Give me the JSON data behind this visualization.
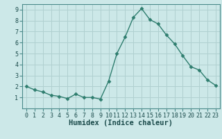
{
  "x": [
    0,
    1,
    2,
    3,
    4,
    5,
    6,
    7,
    8,
    9,
    10,
    11,
    12,
    13,
    14,
    15,
    16,
    17,
    18,
    19,
    20,
    21,
    22,
    23
  ],
  "y": [
    2.0,
    1.7,
    1.5,
    1.2,
    1.1,
    0.9,
    1.3,
    1.0,
    1.0,
    0.85,
    2.5,
    5.0,
    6.5,
    8.3,
    9.1,
    8.1,
    7.7,
    6.7,
    5.9,
    4.8,
    3.8,
    3.5,
    2.6,
    2.1
  ],
  "line_color": "#2e7d6e",
  "marker_color": "#2e7d6e",
  "bg_color": "#cce8e8",
  "grid_color": "#b0d0d0",
  "border_color": "#4a8a8a",
  "xlabel": "Humidex (Indice chaleur)",
  "xlim": [
    -0.5,
    23.5
  ],
  "ylim": [
    0,
    9.5
  ],
  "yticks": [
    1,
    2,
    3,
    4,
    5,
    6,
    7,
    8,
    9
  ],
  "xticks": [
    0,
    1,
    2,
    3,
    4,
    5,
    6,
    7,
    8,
    9,
    10,
    11,
    12,
    13,
    14,
    15,
    16,
    17,
    18,
    19,
    20,
    21,
    22,
    23
  ],
  "tick_label_size": 6.0,
  "xlabel_size": 7.5,
  "linewidth": 1.0,
  "markersize": 2.5
}
